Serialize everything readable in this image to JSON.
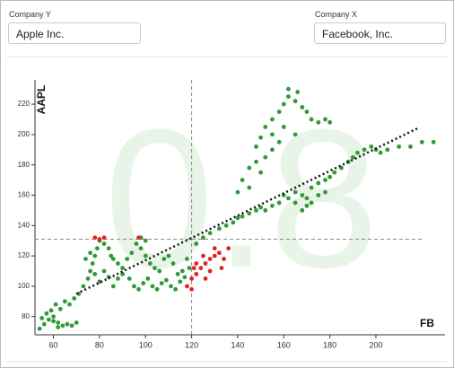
{
  "form": {
    "company_y_label": "Company Y",
    "company_y_value": "Apple Inc.",
    "company_x_label": "Company X",
    "company_x_value": "Facebook, Inc."
  },
  "chart_data": {
    "type": "scatter",
    "watermark": "0.8",
    "x_label": "FB",
    "y_label": "AAPL",
    "xlim": [
      52,
      230
    ],
    "ylim": [
      68,
      236
    ],
    "xticks": [
      60,
      80,
      100,
      120,
      140,
      160,
      180,
      200
    ],
    "yticks": [
      80,
      100,
      120,
      140,
      160,
      180,
      200,
      220
    ],
    "crosshair": {
      "x": 120,
      "y": 131
    },
    "trend_line": {
      "x": [
        70,
        218
      ],
      "y": [
        95,
        204
      ]
    },
    "series": [
      {
        "color": "#2f9a36",
        "x": [
          54,
          56,
          58,
          60,
          62,
          64,
          66,
          68,
          70,
          57,
          59,
          61,
          63,
          65,
          67,
          69,
          71,
          60,
          62,
          55,
          73,
          75,
          76,
          77,
          78,
          79,
          80,
          82,
          84,
          85,
          86,
          88,
          90,
          74,
          76,
          78,
          80,
          82,
          84,
          86,
          88,
          90,
          92,
          94,
          96,
          98,
          100,
          102,
          104,
          106,
          108,
          110,
          112,
          114,
          116,
          118,
          93,
          95,
          97,
          99,
          101,
          103,
          105,
          107,
          109,
          111,
          113,
          115,
          117,
          119,
          100,
          98,
          122,
          125,
          128,
          132,
          135,
          138,
          140,
          142,
          145,
          148,
          150,
          152,
          155,
          158,
          160,
          162,
          165,
          168,
          170,
          172,
          175,
          178,
          180,
          182,
          185,
          188,
          190,
          192,
          195,
          198,
          200,
          202,
          205,
          210,
          215,
          220,
          225,
          168,
          170,
          172,
          175,
          165,
          178,
          142,
          145,
          148,
          150,
          152,
          155,
          150,
          152,
          155,
          158,
          160,
          162,
          165,
          168,
          170,
          172,
          175,
          178,
          180,
          155,
          160,
          165,
          162,
          166,
          145,
          140,
          148,
          158
        ],
        "y": [
          72,
          75,
          78,
          80,
          76,
          74,
          75,
          74,
          76,
          82,
          84,
          88,
          85,
          90,
          88,
          92,
          95,
          77,
          73,
          79,
          100,
          105,
          110,
          115,
          120,
          125,
          130,
          128,
          125,
          120,
          118,
          115,
          112,
          118,
          122,
          108,
          103,
          110,
          106,
          100,
          105,
          108,
          118,
          122,
          128,
          125,
          120,
          115,
          112,
          110,
          118,
          120,
          115,
          108,
          110,
          118,
          105,
          100,
          98,
          102,
          105,
          100,
          98,
          102,
          104,
          100,
          98,
          103,
          106,
          112,
          130,
          132,
          128,
          132,
          135,
          138,
          140,
          142,
          145,
          146,
          148,
          150,
          152,
          150,
          153,
          155,
          160,
          158,
          162,
          160,
          158,
          165,
          168,
          170,
          172,
          175,
          178,
          182,
          185,
          188,
          190,
          192,
          190,
          188,
          190,
          192,
          192,
          195,
          195,
          150,
          153,
          155,
          160,
          155,
          162,
          170,
          178,
          182,
          175,
          185,
          190,
          198,
          205,
          210,
          215,
          220,
          225,
          222,
          218,
          215,
          210,
          208,
          210,
          208,
          200,
          205,
          200,
          230,
          228,
          165,
          162,
          192,
          195
        ]
      },
      {
        "color": "#e02424",
        "x": [
          118,
          120,
          122,
          124,
          126,
          128,
          130,
          132,
          134,
          136,
          120,
          122,
          125,
          128,
          130,
          133,
          121,
          126,
          78,
          80,
          82,
          97
        ],
        "y": [
          100,
          105,
          108,
          112,
          115,
          118,
          120,
          122,
          118,
          125,
          98,
          115,
          120,
          110,
          125,
          112,
          112,
          105,
          132,
          131,
          132,
          132
        ]
      }
    ]
  }
}
